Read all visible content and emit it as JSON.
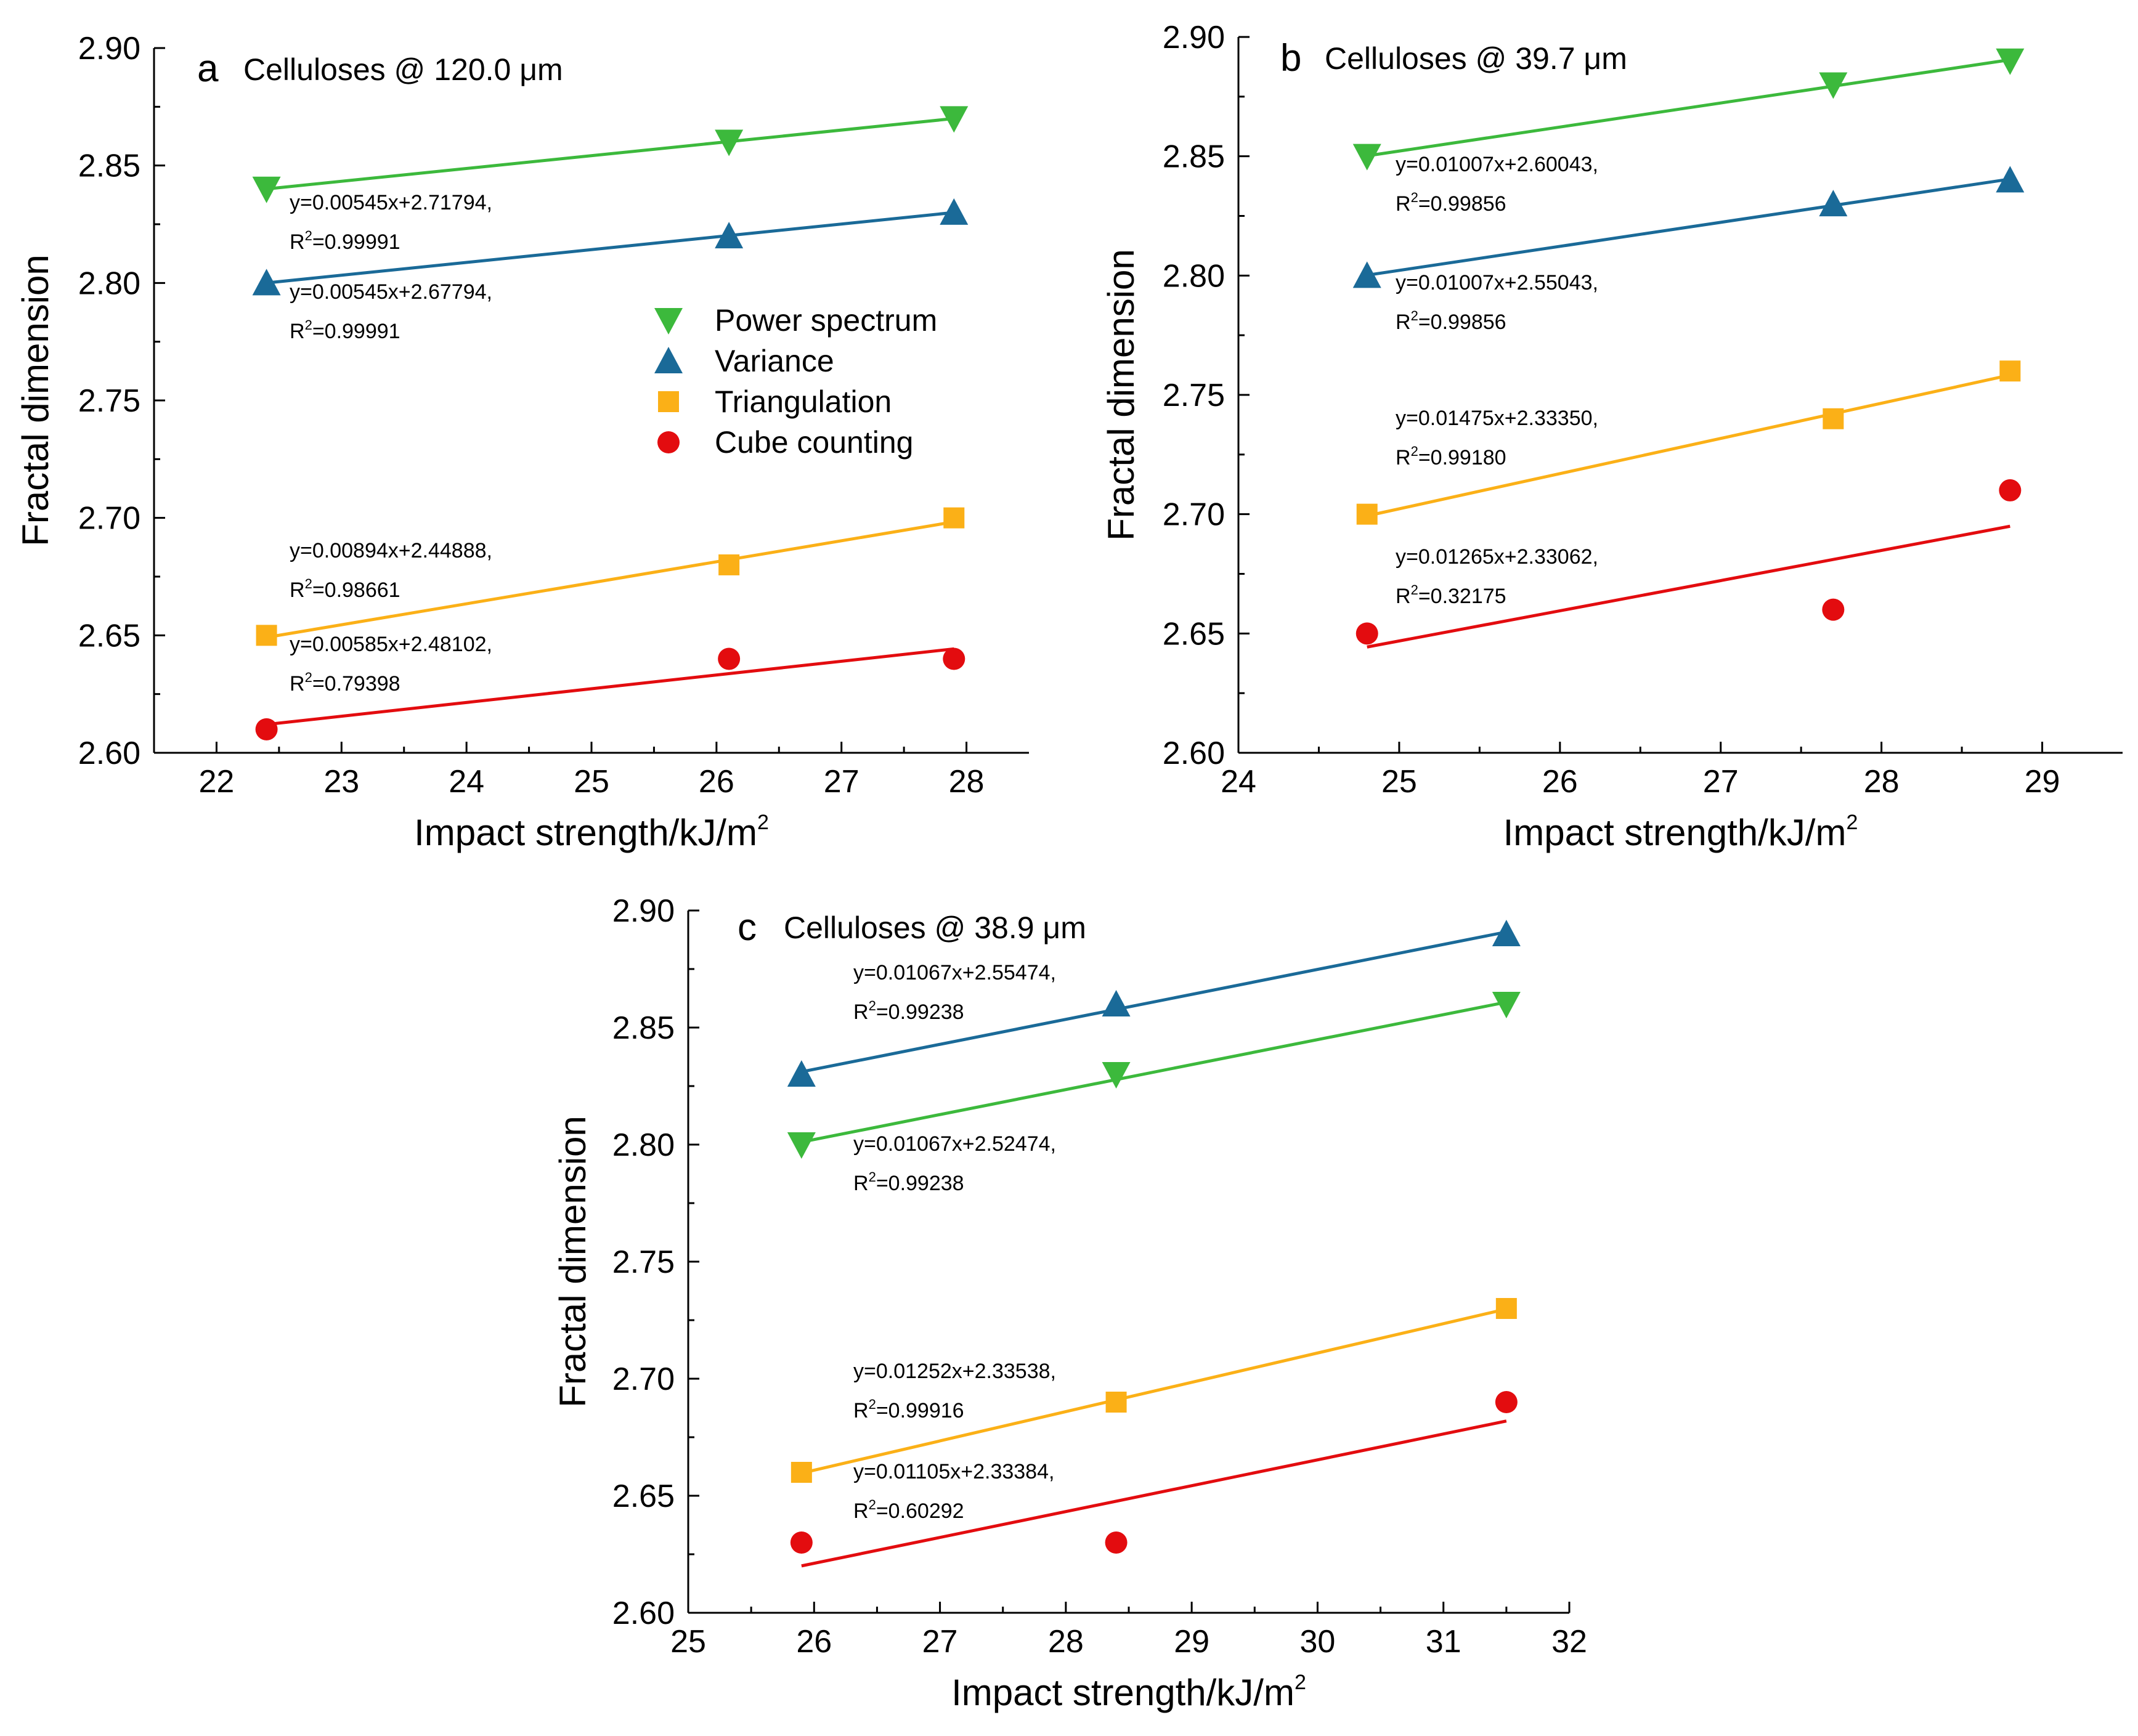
{
  "colors": {
    "power": "#3cb93c",
    "variance": "#1a6a98",
    "triangulation": "#fbb017",
    "cube": "#e30c0f"
  },
  "legend": {
    "power": "Power spectrum",
    "variance": "Variance",
    "triangulation": "Triangulation",
    "cube": "Cube counting"
  },
  "chart_data": [
    {
      "type": "scatter",
      "panel": "a",
      "title": "Celluloses @ 120.0 μm",
      "xlabel": "Impact strength/kJ/m",
      "xlabel_sup": "2",
      "ylabel": "Fractal dimension",
      "xlim": [
        21.5,
        28.5
      ],
      "ylim": [
        2.6,
        2.9
      ],
      "xticks": [
        "22",
        "23",
        "24",
        "25",
        "26",
        "27",
        "28"
      ],
      "yticks": [
        "2.60",
        "2.65",
        "2.70",
        "2.75",
        "2.80",
        "2.85",
        "2.90"
      ],
      "series": [
        {
          "key": "power",
          "marker": "tri-down",
          "x": [
            22.4,
            26.1,
            27.9
          ],
          "y": [
            2.84,
            2.86,
            2.87
          ],
          "fit": {
            "slope": 0.00545,
            "intercept": 2.71794,
            "x": [
              22.4,
              27.9
            ]
          },
          "eq": "y=0.00545x+2.71794,",
          "r2": "=0.99991"
        },
        {
          "key": "variance",
          "marker": "tri-up",
          "x": [
            22.4,
            26.1,
            27.9
          ],
          "y": [
            2.8,
            2.82,
            2.83
          ],
          "fit": {
            "slope": 0.00545,
            "intercept": 2.67794,
            "x": [
              22.4,
              27.9
            ]
          },
          "eq": "y=0.00545x+2.67794,",
          "r2": "=0.99991"
        },
        {
          "key": "triangulation",
          "marker": "square",
          "x": [
            22.4,
            26.1,
            27.9
          ],
          "y": [
            2.65,
            2.68,
            2.7
          ],
          "fit": {
            "slope": 0.00894,
            "intercept": 2.44888,
            "x": [
              22.4,
              27.9
            ]
          },
          "eq": "y=0.00894x+2.44888,",
          "r2": "=0.98661"
        },
        {
          "key": "cube",
          "marker": "circle",
          "x": [
            22.4,
            26.1,
            27.9
          ],
          "y": [
            2.61,
            2.64,
            2.64
          ],
          "fit": {
            "slope": 0.00585,
            "intercept": 2.48102,
            "x": [
              22.4,
              27.9
            ]
          },
          "eq": "y=0.00585x+2.48102,",
          "r2": "=0.79398"
        }
      ]
    },
    {
      "type": "scatter",
      "panel": "b",
      "title": "Celluloses @ 39.7 μm",
      "xlabel": "Impact strength/kJ/m",
      "xlabel_sup": "2",
      "ylabel": "Fractal dimension",
      "xlim": [
        24.0,
        29.5
      ],
      "ylim": [
        2.6,
        2.9
      ],
      "xticks": [
        "24",
        "25",
        "26",
        "27",
        "28",
        "29"
      ],
      "yticks": [
        "2.60",
        "2.65",
        "2.70",
        "2.75",
        "2.80",
        "2.85",
        "2.90"
      ],
      "series": [
        {
          "key": "power",
          "marker": "tri-down",
          "x": [
            24.8,
            27.7,
            28.8
          ],
          "y": [
            2.85,
            2.88,
            2.89
          ],
          "fit": {
            "slope": 0.01007,
            "intercept": 2.60043,
            "x": [
              24.8,
              28.8
            ]
          },
          "eq": "y=0.01007x+2.60043,",
          "r2": "=0.99856"
        },
        {
          "key": "variance",
          "marker": "tri-up",
          "x": [
            24.8,
            27.7,
            28.8
          ],
          "y": [
            2.8,
            2.83,
            2.84
          ],
          "fit": {
            "slope": 0.01007,
            "intercept": 2.55043,
            "x": [
              24.8,
              28.8
            ]
          },
          "eq": "y=0.01007x+2.55043,",
          "r2": "=0.99856"
        },
        {
          "key": "triangulation",
          "marker": "square",
          "x": [
            24.8,
            27.7,
            28.8
          ],
          "y": [
            2.7,
            2.74,
            2.76
          ],
          "fit": {
            "slope": 0.01475,
            "intercept": 2.3335,
            "x": [
              24.8,
              28.8
            ]
          },
          "eq": "y=0.01475x+2.33350,",
          "r2": "=0.99180"
        },
        {
          "key": "cube",
          "marker": "circle",
          "x": [
            24.8,
            27.7,
            28.8
          ],
          "y": [
            2.65,
            2.66,
            2.71
          ],
          "fit": {
            "slope": 0.01265,
            "intercept": 2.33062,
            "x": [
              24.8,
              28.8
            ]
          },
          "eq": "y=0.01265x+2.33062,",
          "r2": "=0.32175"
        }
      ]
    },
    {
      "type": "scatter",
      "panel": "c",
      "title": "Celluloses @ 38.9 μm",
      "xlabel": "Impact strength/kJ/m",
      "xlabel_sup": "2",
      "ylabel": "Fractal dimension",
      "xlim": [
        25,
        32
      ],
      "ylim": [
        2.6,
        2.9
      ],
      "xticks": [
        "25",
        "26",
        "27",
        "28",
        "29",
        "30",
        "31",
        "32"
      ],
      "yticks": [
        "2.60",
        "2.65",
        "2.70",
        "2.75",
        "2.80",
        "2.85",
        "2.90"
      ],
      "series": [
        {
          "key": "variance",
          "marker": "tri-up",
          "x": [
            25.9,
            28.4,
            31.5
          ],
          "y": [
            2.83,
            2.86,
            2.89
          ],
          "fit": {
            "slope": 0.01067,
            "intercept": 2.55474,
            "x": [
              25.9,
              31.5
            ]
          },
          "eq": "y=0.01067x+2.55474,",
          "r2": "=0.99238"
        },
        {
          "key": "power",
          "marker": "tri-down",
          "x": [
            25.9,
            28.4,
            31.5
          ],
          "y": [
            2.8,
            2.83,
            2.86
          ],
          "fit": {
            "slope": 0.01067,
            "intercept": 2.52474,
            "x": [
              25.9,
              31.5
            ]
          },
          "eq": "y=0.01067x+2.52474,",
          "r2": "=0.99238"
        },
        {
          "key": "triangulation",
          "marker": "square",
          "x": [
            25.9,
            28.4,
            31.5
          ],
          "y": [
            2.66,
            2.69,
            2.73
          ],
          "fit": {
            "slope": 0.01252,
            "intercept": 2.33538,
            "x": [
              25.9,
              31.5
            ]
          },
          "eq": "y=0.01252x+2.33538,",
          "r2": "=0.99916"
        },
        {
          "key": "cube",
          "marker": "circle",
          "x": [
            25.9,
            28.4,
            31.5
          ],
          "y": [
            2.63,
            2.63,
            2.69
          ],
          "fit": {
            "slope": 0.01105,
            "intercept": 2.33384,
            "x": [
              25.9,
              31.5
            ]
          },
          "eq": "y=0.01105x+2.33384,",
          "r2": "=0.60292"
        }
      ]
    }
  ]
}
